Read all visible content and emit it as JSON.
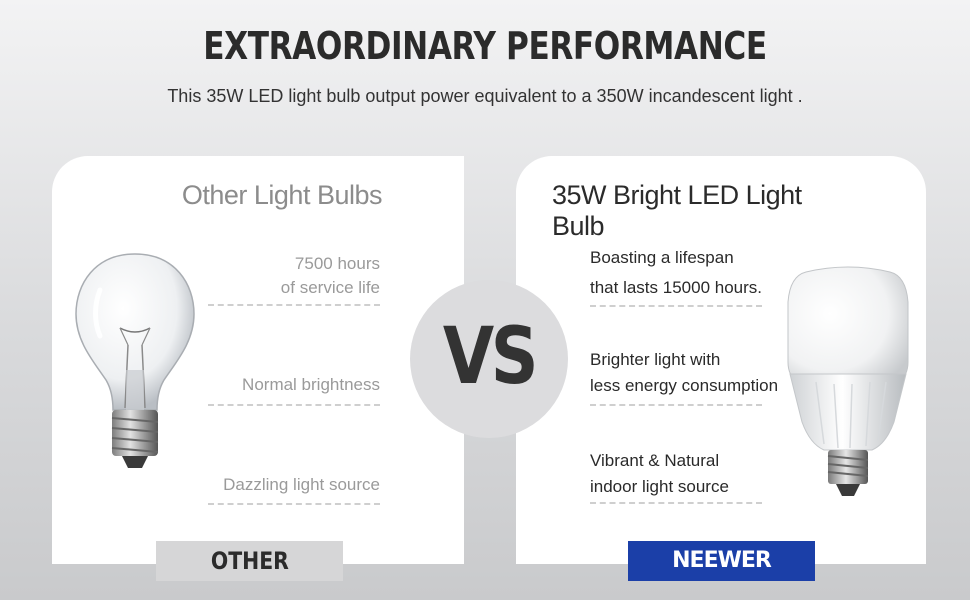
{
  "header": {
    "title": "EXTRAORDINARY PERFORMANCE",
    "subtitle": "This 35W LED light bulb output power equivalent to a 350W incandescent light ."
  },
  "left_panel": {
    "heading": "Other Light Bulbs",
    "features": [
      {
        "line1": "7500 hours",
        "line2": "of service life"
      },
      {
        "line1": "Normal brightness"
      },
      {
        "line1": "Dazzling light source"
      }
    ],
    "badge": "OTHER"
  },
  "vs_label": "VS",
  "right_panel": {
    "heading": "35W Bright LED Light Bulb",
    "features": [
      {
        "line1": "Boasting a lifespan",
        "line2": "that lasts 15000 hours."
      },
      {
        "line1": "Brighter light with",
        "line2": "less energy consumption"
      },
      {
        "line1": "Vibrant & Natural",
        "line2": "indoor light source"
      }
    ],
    "badge": "NEEWER"
  },
  "colors": {
    "brand_blue": "#1b3fa8",
    "other_badge": "#d6d6d7",
    "vs_circle": "#dcdcde"
  },
  "icons": [
    "incandescent-bulb-icon",
    "led-bulb-icon"
  ]
}
